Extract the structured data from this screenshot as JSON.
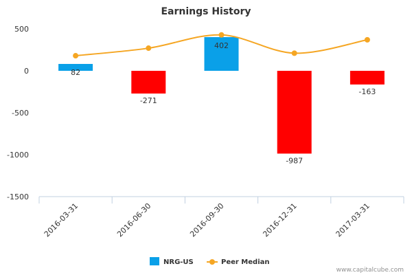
{
  "chart_data": {
    "type": "bar",
    "title": "Earnings History",
    "categories": [
      "2016-03-31",
      "2016-06-30",
      "2016-09-30",
      "2016-12-31",
      "2017-03-31"
    ],
    "series": [
      {
        "name": "NRG-US",
        "type": "bar",
        "values": [
          82,
          -271,
          402,
          -987,
          -163
        ],
        "data_labels": [
          "82",
          "-271",
          "402",
          "-987",
          "-163"
        ],
        "color_positive": "#0aa0e8",
        "color_negative": "#ff0000"
      },
      {
        "name": "Peer Median",
        "type": "line",
        "values": [
          180,
          270,
          428,
          210,
          370
        ],
        "color": "#f5a623"
      }
    ],
    "ylim": [
      -1500,
      500
    ],
    "yticks": [
      500,
      0,
      -500,
      -1000,
      -1500
    ],
    "ytick_labels": [
      "500",
      "0",
      "-500",
      "-1000",
      "-1500"
    ],
    "xlabel": "",
    "ylabel": "",
    "legend": "bottom-center"
  },
  "credit": "www.capitalcube.com"
}
